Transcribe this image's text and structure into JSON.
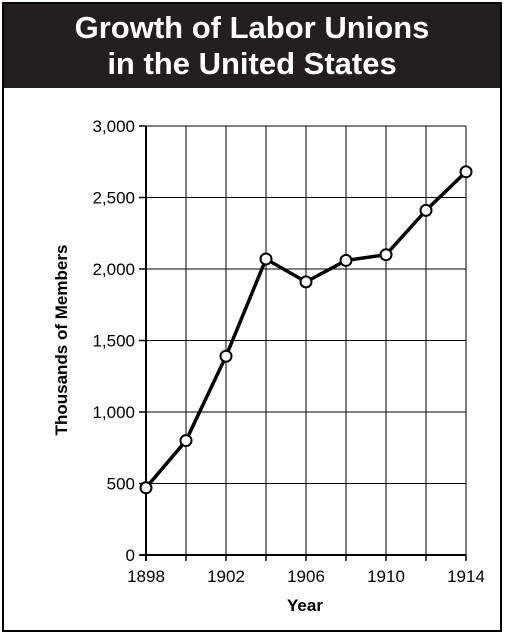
{
  "chart_data": {
    "type": "line",
    "title_lines": [
      "Growth of Labor Unions",
      "in the United States"
    ],
    "xlabel": "Year",
    "ylabel": "Thousands of Members",
    "x": [
      1898,
      1900,
      1902,
      1904,
      1906,
      1908,
      1910,
      1912,
      1914
    ],
    "values": [
      470,
      800,
      1390,
      2070,
      1910,
      2060,
      2100,
      2410,
      2680
    ],
    "xlim": [
      1898,
      1914
    ],
    "ylim": [
      0,
      3000
    ],
    "x_tick_labels": [
      "1898",
      "1902",
      "1906",
      "1910",
      "1914"
    ],
    "x_tick_values": [
      1898,
      1902,
      1906,
      1910,
      1914
    ],
    "y_tick_labels": [
      "0",
      "500",
      "1,000",
      "1,500",
      "2,000",
      "2,500",
      "3,000"
    ],
    "y_tick_values": [
      0,
      500,
      1000,
      1500,
      2000,
      2500,
      3000
    ],
    "x_grid_values": [
      1898,
      1900,
      1902,
      1904,
      1906,
      1908,
      1910,
      1912,
      1914
    ],
    "y_grid_values": [
      0,
      500,
      1000,
      1500,
      2000,
      2500,
      3000
    ],
    "grid": true,
    "line_color": "#000000",
    "marker_fill": "#ffffff",
    "title_bar_color": "#231f20"
  }
}
